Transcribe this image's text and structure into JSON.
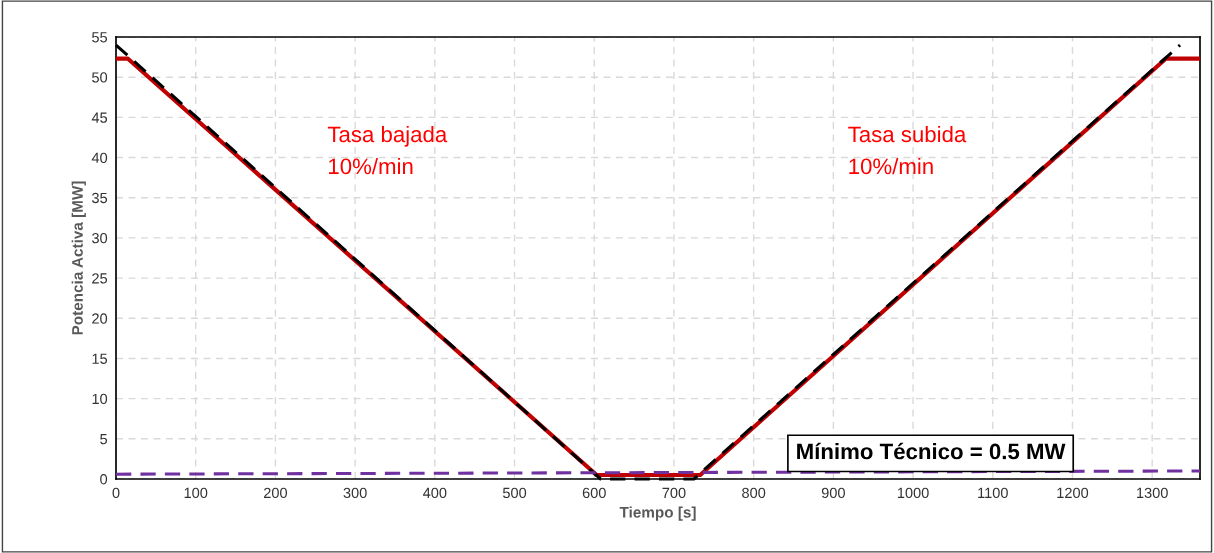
{
  "chart_data": {
    "type": "line",
    "xlabel": "Tiempo [s]",
    "ylabel": "Potencia Activa [MW]",
    "xlim": [
      0,
      1360
    ],
    "xticks": [
      0,
      100,
      200,
      300,
      400,
      500,
      600,
      700,
      800,
      900,
      1000,
      1100,
      1200,
      1300
    ],
    "ylim": [
      0,
      55
    ],
    "yticks": [
      0,
      5,
      10,
      15,
      20,
      25,
      30,
      35,
      40,
      45,
      50,
      55
    ],
    "grid": true,
    "marker": "none",
    "series": [
      {
        "color": "#c00000",
        "line_style": "solid",
        "x": [
          0,
          15,
          603,
          733,
          1317,
          1360
        ],
        "values": [
          52.3,
          52.3,
          0.5,
          0.5,
          52.3,
          52.3
        ]
      },
      {
        "color": "#000000",
        "line_style": "dashed",
        "x": [
          0,
          608,
          725,
          1335
        ],
        "values": [
          54,
          0,
          0,
          54
        ]
      },
      {
        "color": "#7030a0",
        "line_style": "dashed",
        "x": [
          0,
          1360
        ],
        "values": [
          0.6,
          1.0
        ]
      }
    ],
    "annotations": [
      "Tasa bajada\n10%/min",
      "Tasa subida\n10%/min",
      "Mínimo Técnico = 0.5 MW"
    ]
  }
}
